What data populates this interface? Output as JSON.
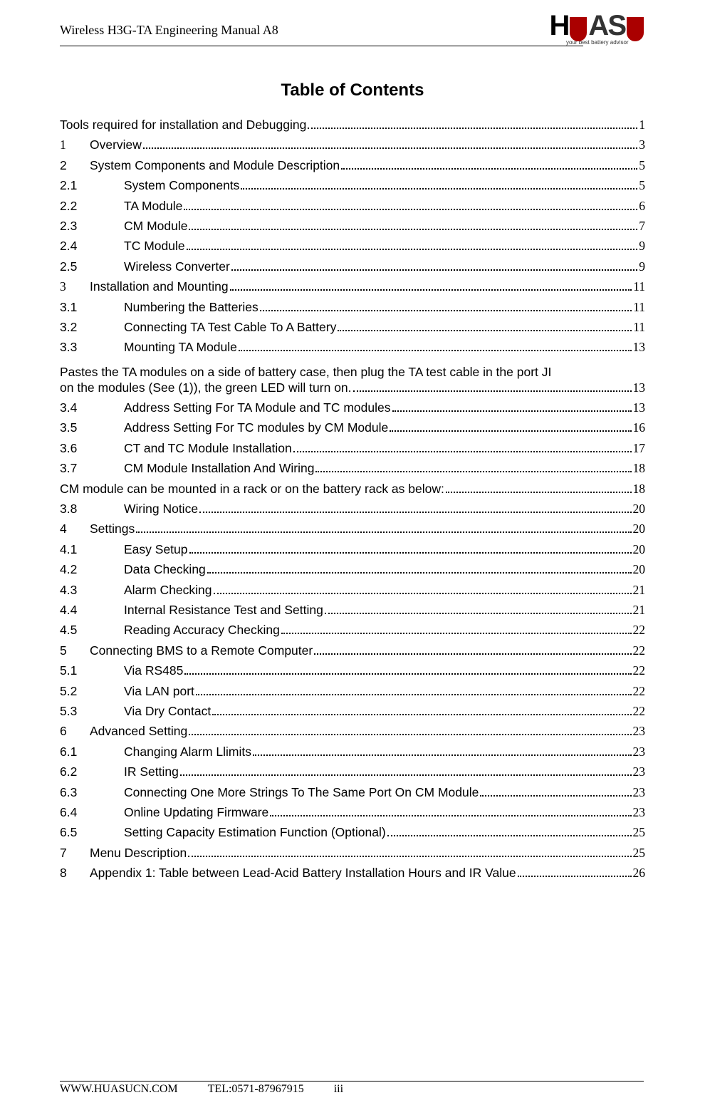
{
  "header": {
    "title": "Wireless H3G-TA Engineering Manual A8",
    "logo_text": "HUASU",
    "logo_tagline": "your best battery advisor"
  },
  "toc_title": "Table of Contents",
  "toc": [
    {
      "type": "flat",
      "num": "",
      "numClass": "",
      "label": "Tools required for installation and Debugging",
      "page": "1"
    },
    {
      "type": "top",
      "num": "1",
      "numClass": "serif",
      "label": "Overview",
      "page": "3"
    },
    {
      "type": "top",
      "num": "2",
      "numClass": "",
      "label": "System Components and Module Description",
      "page": "5"
    },
    {
      "type": "sub",
      "num": "2.1",
      "numClass": "",
      "label": "System Components",
      "page": "5"
    },
    {
      "type": "sub",
      "num": "2.2",
      "numClass": "",
      "label": "TA Module",
      "page": "6"
    },
    {
      "type": "sub",
      "num": "2.3",
      "numClass": "",
      "label": "CM Module",
      "page": "7"
    },
    {
      "type": "sub",
      "num": "2.4",
      "numClass": "",
      "label": "TC Module",
      "page": "9"
    },
    {
      "type": "sub",
      "num": "2.5",
      "numClass": "",
      "label": "Wireless Converter",
      "page": "9"
    },
    {
      "type": "top",
      "num": "3",
      "numClass": "serif",
      "label": "Installation and Mounting",
      "page": "11"
    },
    {
      "type": "sub",
      "num": "3.1",
      "numClass": "",
      "label": "Numbering the Batteries",
      "page": "11"
    },
    {
      "type": "sub",
      "num": "3.2",
      "numClass": "",
      "label": "Connecting TA Test Cable To A Battery",
      "page": "11"
    },
    {
      "type": "sub",
      "num": "3.3",
      "numClass": "",
      "label": "Mounting TA Module",
      "page": "13"
    },
    {
      "type": "wrap",
      "line1": "Pastes the TA modules on a side of battery case, then plug the TA test cable in the port JI",
      "line2": "on the modules (See (1)), the green LED will turn on.",
      "page": "13"
    },
    {
      "type": "sub",
      "num": "3.4",
      "numClass": "",
      "label": "Address Setting For TA Module and TC modules",
      "page": "13"
    },
    {
      "type": "sub",
      "num": "3.5",
      "numClass": "",
      "label": "Address Setting For TC modules by CM Module",
      "page": "16"
    },
    {
      "type": "sub",
      "num": "3.6",
      "numClass": "",
      "label": "CT and TC Module Installation",
      "page": "17"
    },
    {
      "type": "sub",
      "num": "3.7",
      "numClass": "",
      "label": "CM Module Installation And Wiring",
      "page": "18"
    },
    {
      "type": "flat",
      "num": "",
      "numClass": "",
      "label": "CM module can be mounted in a rack or on the battery rack as below:",
      "page": "18"
    },
    {
      "type": "sub",
      "num": "3.8",
      "numClass": "",
      "label": "Wiring Notice",
      "page": "20"
    },
    {
      "type": "top",
      "num": "4",
      "numClass": "",
      "label": "Settings",
      "page": "20"
    },
    {
      "type": "sub",
      "num": "4.1",
      "numClass": "",
      "label": "Easy Setup",
      "page": "20"
    },
    {
      "type": "sub",
      "num": "4.2",
      "numClass": "",
      "label": "Data Checking",
      "page": "20"
    },
    {
      "type": "sub",
      "num": "4.3",
      "numClass": "",
      "label": "Alarm Checking",
      "page": "21"
    },
    {
      "type": "sub",
      "num": "4.4",
      "numClass": "",
      "label": "Internal Resistance Test and Setting",
      "page": "21"
    },
    {
      "type": "sub",
      "num": "4.5",
      "numClass": "",
      "label": "Reading Accuracy Checking",
      "page": "22"
    },
    {
      "type": "top",
      "num": "5",
      "numClass": "",
      "label": "Connecting BMS to a Remote Computer",
      "page": "22"
    },
    {
      "type": "sub",
      "num": "5.1",
      "numClass": "",
      "label": "Via RS485",
      "page": "22"
    },
    {
      "type": "sub",
      "num": "5.2",
      "numClass": "",
      "label": "Via LAN port",
      "page": "22"
    },
    {
      "type": "sub",
      "num": "5.3",
      "numClass": "",
      "label": "Via Dry Contact",
      "page": "22"
    },
    {
      "type": "top",
      "num": "6",
      "numClass": "",
      "label": "Advanced Setting",
      "page": "23"
    },
    {
      "type": "sub",
      "num": "6.1",
      "numClass": "",
      "label": "Changing Alarm Llimits",
      "page": "23"
    },
    {
      "type": "sub",
      "num": "6.2",
      "numClass": "",
      "label": "IR Setting",
      "page": "23"
    },
    {
      "type": "sub",
      "num": "6.3",
      "numClass": "",
      "label": "Connecting One More Strings To The Same Port On CM Module",
      "page": "23"
    },
    {
      "type": "sub",
      "num": "6.4",
      "numClass": "",
      "label": "Online Updating Firmware",
      "page": "23"
    },
    {
      "type": "sub",
      "num": "6.5",
      "numClass": "",
      "label": "Setting Capacity Estimation Function (Optional)",
      "page": "25"
    },
    {
      "type": "top",
      "num": "7",
      "numClass": "",
      "label": "Menu Description",
      "page": "25"
    },
    {
      "type": "top",
      "num": "8",
      "numClass": "",
      "label": "Appendix 1: Table between Lead-Acid Battery Installation Hours and IR Value",
      "page": "26"
    }
  ],
  "footer": {
    "site": "WWW.HUASUCN.COM",
    "tel": "TEL:0571-87967915",
    "page_num": "iii"
  }
}
